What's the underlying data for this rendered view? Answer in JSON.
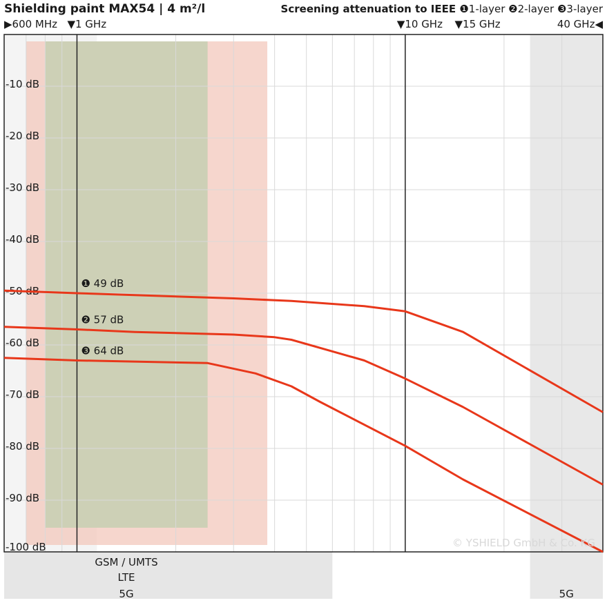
{
  "header": {
    "title": "Shielding paint MAX54 | 4 m²/l",
    "subtitle": "Screening attenuation to IEEE",
    "legend": [
      {
        "marker": "❶",
        "label": "1-layer"
      },
      {
        "marker": "❷",
        "label": "2-layer"
      },
      {
        "marker": "❸",
        "label": "3-layer"
      }
    ]
  },
  "freq_markers": [
    {
      "text": "▶600 MHz",
      "freq_ghz": 0.6
    },
    {
      "text": "▼1 GHz",
      "freq_ghz": 1
    },
    {
      "text": "▼10 GHz",
      "freq_ghz": 10
    },
    {
      "text": "▼15 GHz",
      "freq_ghz": 15
    },
    {
      "text": "40 GHz◀",
      "freq_ghz": 40
    }
  ],
  "colors": {
    "curve": "#e8371a",
    "band_gsm": "#c9cfb4",
    "band_lte": "#f2c4b8",
    "band_5g": "#e6e6e6",
    "grid": "#d9d9d9",
    "axis": "#222222"
  },
  "band_labels": {
    "gsm": "GSM / UMTS",
    "lte": "LTE",
    "g5_left": "5G",
    "g5_right": "5G"
  },
  "copyright": "© YSHIELD GmbH & Co. KG",
  "chart_data": {
    "type": "line",
    "x_scale": "log",
    "xlim": [
      0.6,
      40
    ],
    "ylim": [
      -100,
      0
    ],
    "yticks": [
      -10,
      -20,
      -30,
      -40,
      -50,
      -60,
      -70,
      -80,
      -90,
      -100
    ],
    "ytick_labels": [
      "-10 dB",
      "-20 dB",
      "-30 dB",
      "-40 dB",
      "-50 dB",
      "-60 dB",
      "-70 dB",
      "-80 dB",
      "-90 dB",
      "-100 dB"
    ],
    "grid": true,
    "series": [
      {
        "marker": "❶",
        "label": "49 dB",
        "x": [
          0.6,
          1,
          3,
          4.5,
          7.5,
          10,
          15,
          40
        ],
        "y": [
          -49.5,
          -50,
          -51,
          -51.5,
          -52.5,
          -53.5,
          -57.5,
          -73
        ]
      },
      {
        "marker": "❷",
        "label": "57 dB",
        "x": [
          0.6,
          1,
          1.5,
          3,
          4,
          4.5,
          7.5,
          10,
          15,
          40
        ],
        "y": [
          -56.5,
          -57,
          -57.5,
          -58,
          -58.5,
          -59,
          -63,
          -66.5,
          -72,
          -87
        ]
      },
      {
        "marker": "❸",
        "label": "64 dB",
        "x": [
          0.6,
          1,
          2.5,
          3.5,
          4.5,
          5.5,
          10,
          15,
          40
        ],
        "y": [
          -62.5,
          -63,
          -63.5,
          -65.5,
          -68,
          -71,
          -79.5,
          -86,
          -100
        ]
      }
    ]
  }
}
